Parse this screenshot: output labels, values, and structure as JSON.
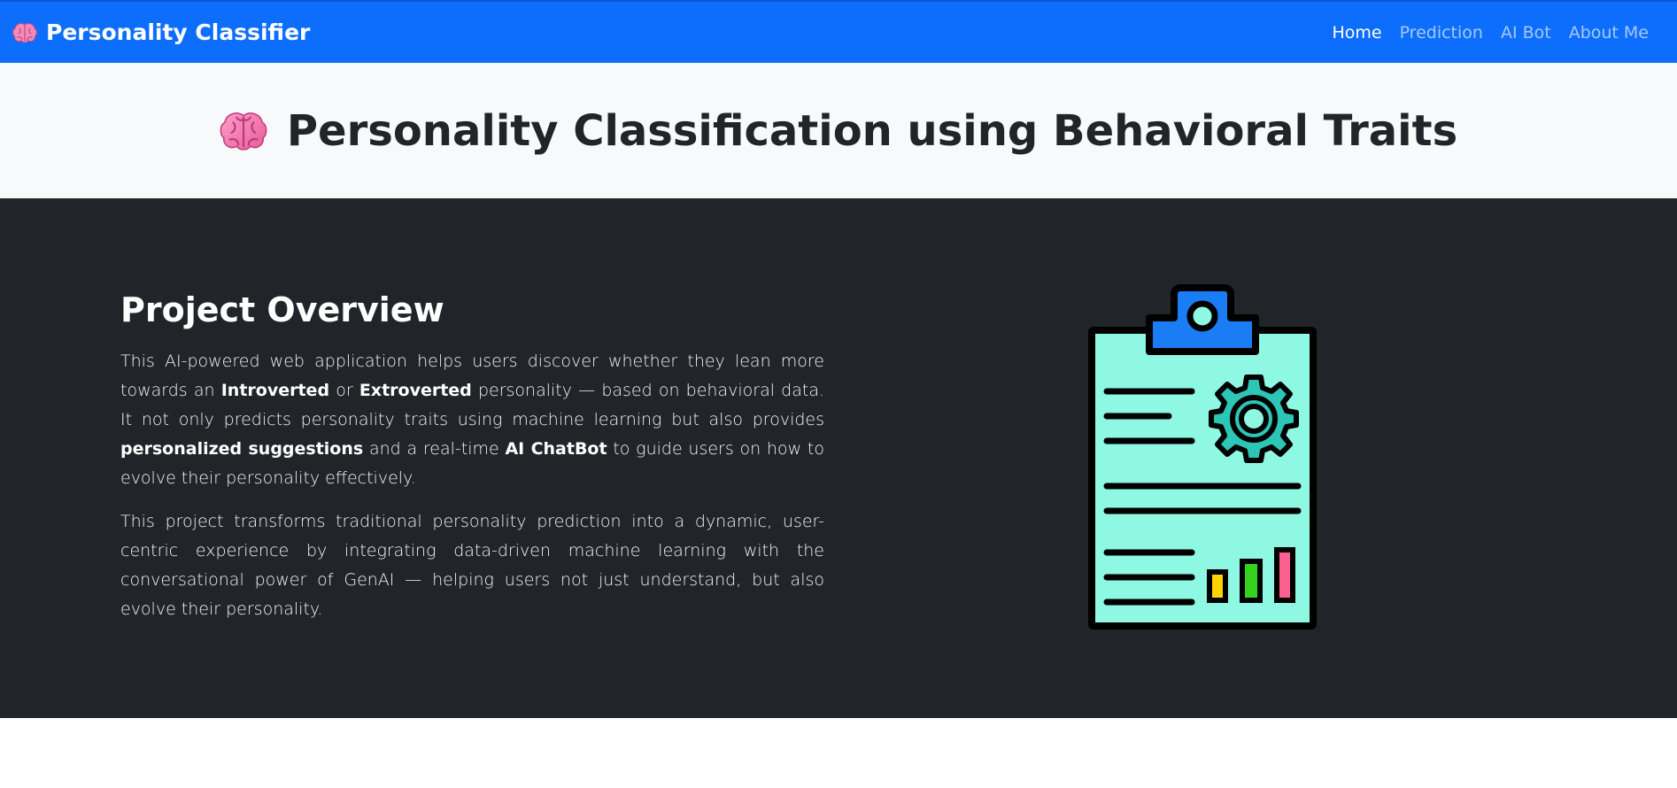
{
  "navbar": {
    "brand_icon": "brain-icon",
    "brand_label": "Personality Classifier",
    "links": [
      {
        "label": "Home",
        "active": true
      },
      {
        "label": "Prediction",
        "active": false
      },
      {
        "label": "AI Bot",
        "active": false
      },
      {
        "label": "About Me",
        "active": false
      }
    ]
  },
  "hero": {
    "icon": "brain-icon",
    "title": "Personality Classification using Behavioral Traits"
  },
  "overview": {
    "title": "Project Overview",
    "paragraph1": {
      "p1": "This AI-powered web application helps users discover whether they lean more towards an ",
      "b1": "Introverted",
      "p2": " or ",
      "b2": "Extroverted",
      "p3": " personality — based on behavioral data. It not only predicts personality traits using machine learning but also provides ",
      "b3": "personalized suggestions",
      "p4": " and a real-time ",
      "b4": "AI ChatBot",
      "p5": " to guide users on how to evolve their personality effectively."
    },
    "paragraph2": "This project transforms traditional personality prediction into a dynamic, user-centric experience by integrating data-driven machine learning with the conversational power of GenAI — helping users not just understand, but also evolve their personality.",
    "illustration_icon": "clipboard-report-icon"
  },
  "colors": {
    "primary": "#0d6efd",
    "hero_bg": "#f8f9fa",
    "dark_bg": "#212529",
    "clipboard_fill": "#8ff8e2",
    "clip_fill": "#1b7df5",
    "gear_fill": "#2cc5b6",
    "bar_yellow": "#ffd400",
    "bar_green": "#35d31e",
    "bar_pink": "#ff5f8e"
  }
}
